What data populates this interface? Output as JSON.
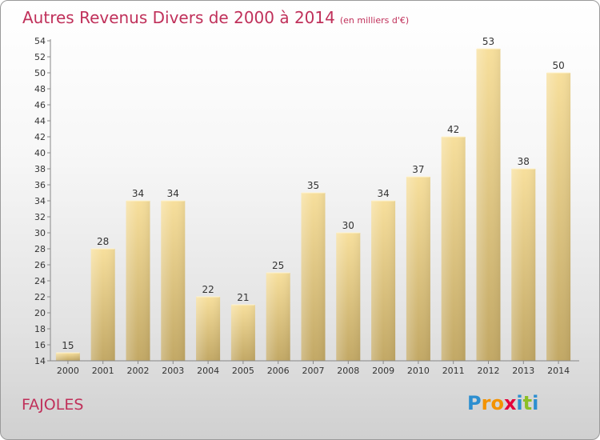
{
  "title": {
    "main": "Autres Revenus Divers de 2000 à 2014",
    "sub": "(en milliers d'€)"
  },
  "commune": "FAJOLES",
  "logo": {
    "letters": [
      "P",
      "r",
      "o",
      "x",
      "i",
      "t",
      "i"
    ],
    "colors": [
      "#2d8fd0",
      "#f39200",
      "#f39200",
      "#e4003a",
      "#2d8fd0",
      "#8cbf26",
      "#2d8fd0"
    ]
  },
  "colors": {
    "title": "#c0305a",
    "bar_light": "#f7df9c",
    "bar_dark": "#c2a865",
    "label": "#333333"
  },
  "chart_data": {
    "type": "bar",
    "categories": [
      "2000",
      "2001",
      "2002",
      "2003",
      "2004",
      "2005",
      "2006",
      "2007",
      "2008",
      "2009",
      "2010",
      "2011",
      "2012",
      "2013",
      "2014"
    ],
    "values": [
      15,
      28,
      34,
      34,
      22,
      21,
      25,
      35,
      30,
      34,
      37,
      42,
      53,
      38,
      50
    ],
    "ylim": [
      14,
      54
    ],
    "yticks": [
      14,
      16,
      18,
      20,
      22,
      24,
      26,
      28,
      30,
      32,
      34,
      36,
      38,
      40,
      42,
      44,
      46,
      48,
      50,
      52,
      54
    ],
    "grid": false,
    "data_labels": true
  }
}
